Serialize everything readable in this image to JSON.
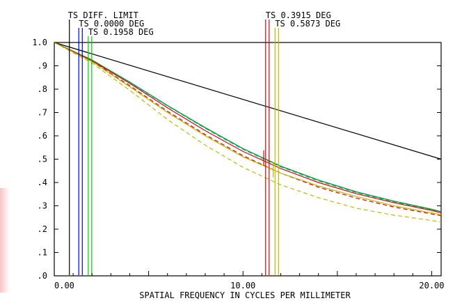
{
  "chart_data": {
    "type": "line",
    "xlabel": "SPATIAL FREQUENCY IN CYCLES PER MILLIMETER",
    "ylabel": "",
    "xlim": [
      0,
      20.5
    ],
    "ylim": [
      0,
      1.0
    ],
    "x_ticks": [
      {
        "value": 0,
        "label": "0.00"
      },
      {
        "value": 10,
        "label": "10.00"
      },
      {
        "value": 20,
        "label": "20.00"
      }
    ],
    "y_ticks": [
      {
        "value": 0.0,
        "label": ".0"
      },
      {
        "value": 0.1,
        "label": ".1"
      },
      {
        "value": 0.2,
        "label": ".2"
      },
      {
        "value": 0.3,
        "label": ".3"
      },
      {
        "value": 0.4,
        "label": ".4"
      },
      {
        "value": 0.5,
        "label": ".5"
      },
      {
        "value": 0.6,
        "label": ".6"
      },
      {
        "value": 0.7,
        "label": ".7"
      },
      {
        "value": 0.8,
        "label": ".8"
      },
      {
        "value": 0.9,
        "label": ".9"
      },
      {
        "value": 1.0,
        "label": "1.0"
      }
    ],
    "legend_groups": [
      {
        "label": "TS DIFF. LIMIT",
        "anchor_x": 0.8,
        "colors": [
          "#000000"
        ]
      },
      {
        "label": "TS 0.0000 DEG",
        "anchor_x": 1.3,
        "colors": [
          "#0000cc",
          "#0000cc"
        ]
      },
      {
        "label": "TS 0.1958 DEG",
        "anchor_x": 1.8,
        "colors": [
          "#00cc00",
          "#00cc00"
        ]
      },
      {
        "label": "TS 0.3915 DEG",
        "anchor_x": 11.2,
        "colors": [
          "#dd0000",
          "#dd0000"
        ]
      },
      {
        "label": "TS 0.5873 DEG",
        "anchor_x": 11.7,
        "colors": [
          "#bbbb00",
          "#bbbb00"
        ]
      }
    ],
    "series": [
      {
        "color": "#000000",
        "dash": "",
        "x": [
          0,
          20.5
        ],
        "y": [
          1.0,
          0.5
        ]
      },
      {
        "color": "#0000cc",
        "dash": "",
        "x": [
          0,
          2,
          4,
          6,
          8,
          10,
          12,
          14,
          16,
          18,
          20,
          20.5
        ],
        "y": [
          1.0,
          0.925,
          0.83,
          0.73,
          0.635,
          0.545,
          0.47,
          0.41,
          0.36,
          0.32,
          0.285,
          0.275
        ]
      },
      {
        "color": "#00aa00",
        "dash": "",
        "x": [
          0,
          2,
          4,
          6,
          8,
          10,
          12,
          14,
          16,
          18,
          20,
          20.5
        ],
        "y": [
          1.0,
          0.925,
          0.83,
          0.73,
          0.635,
          0.545,
          0.47,
          0.41,
          0.36,
          0.32,
          0.285,
          0.275
        ]
      },
      {
        "color": "#00aaaa",
        "dash": "6 4",
        "x": [
          0,
          2,
          4,
          6,
          8,
          10,
          12,
          14,
          16,
          18,
          20,
          20.5
        ],
        "y": [
          1.0,
          0.923,
          0.828,
          0.728,
          0.632,
          0.542,
          0.467,
          0.407,
          0.357,
          0.317,
          0.282,
          0.272
        ]
      },
      {
        "color": "#dd0000",
        "dash": "",
        "x": [
          0,
          2,
          4,
          6,
          8,
          10,
          12,
          14,
          16,
          18,
          20,
          20.5
        ],
        "y": [
          1.0,
          0.922,
          0.825,
          0.72,
          0.622,
          0.533,
          0.46,
          0.4,
          0.352,
          0.313,
          0.28,
          0.27
        ]
      },
      {
        "color": "#dd0000",
        "dash": "6 4",
        "x": [
          0,
          2,
          4,
          6,
          8,
          10,
          12,
          14,
          16,
          18,
          20,
          20.5
        ],
        "y": [
          1.0,
          0.92,
          0.815,
          0.705,
          0.605,
          0.515,
          0.44,
          0.38,
          0.333,
          0.295,
          0.265,
          0.258
        ]
      },
      {
        "color": "#bbbb00",
        "dash": "",
        "x": [
          0,
          2,
          4,
          6,
          8,
          10,
          12,
          14,
          16,
          18,
          20,
          20.5
        ],
        "y": [
          1.0,
          0.918,
          0.81,
          0.7,
          0.6,
          0.51,
          0.44,
          0.385,
          0.34,
          0.3,
          0.27,
          0.262
        ]
      },
      {
        "color": "#bbbb00",
        "dash": "6 4",
        "x": [
          0,
          2,
          4,
          6,
          8,
          10,
          12,
          14,
          16,
          18,
          20,
          20.5
        ],
        "y": [
          1.0,
          0.912,
          0.795,
          0.67,
          0.56,
          0.465,
          0.39,
          0.335,
          0.29,
          0.26,
          0.237,
          0.23
        ]
      }
    ],
    "markers": [
      {
        "x": 11.1,
        "y": 0.52,
        "color": "#dd0000"
      },
      {
        "x": 11.6,
        "y": 0.47,
        "color": "#bbbb00"
      }
    ],
    "grid": false
  }
}
